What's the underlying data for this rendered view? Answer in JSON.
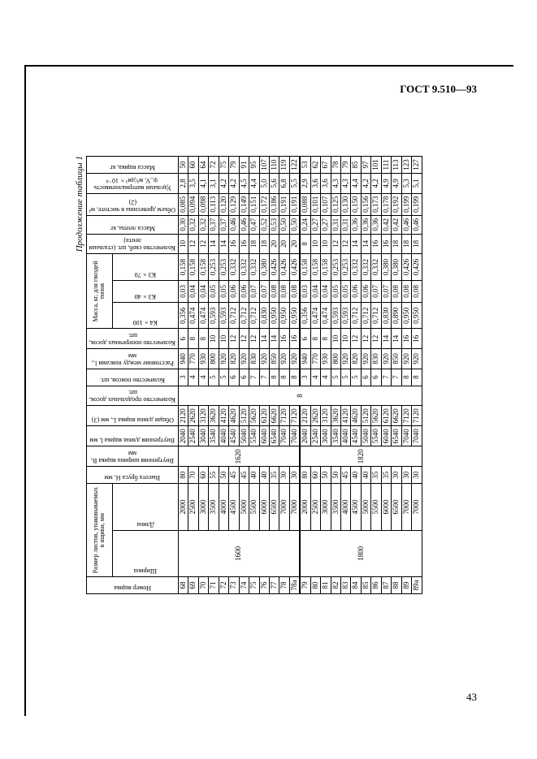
{
  "meta": {
    "gost": "ГОСТ 9.510—93",
    "page": "43",
    "continuation": "Продолжение таблицы 1"
  },
  "headers": {
    "no": "Номер ящика",
    "size_group": "Размер листов, упаковываемых в ящики, мм",
    "w": "Ширина",
    "l": "Длина",
    "H": "Высота бруса H, мм",
    "B": "Внутренняя ширина ящика B, мм",
    "lin": "Внутренняя длина ящика l, мм",
    "Lout": "Общая длина ящика L, мм (3)",
    "pd": "Количество продольных досок, шт.",
    "pc": "Количество поясов, шт.",
    "ld": "Расстояние между поясами l₁, мм",
    "pr": "Количество поперечных досок, шт.",
    "mass_group": "Масса, кг, для гвоздей типов",
    "m1": "К4×100",
    "m2": "К3×40",
    "m3": "К3×70",
    "sk": "Количество скоб, шт. (стальная лента)",
    "ml": "Масса ленты, кг",
    "vd": "Объем древесины в чистоте, м³ (2)",
    "ud": "Удельная материалоемкость ψ_V, м³/дм³×10⁻⁴",
    "mbox": "Масса ящика, кг"
  },
  "blocks": [
    {
      "w": "1600",
      "B": "1620",
      "pd": "8",
      "rows": [
        {
          "n": "68",
          "l": "2000",
          "H": "80",
          "lin": "2040",
          "L": "2120",
          "pc": "3",
          "ld": "940",
          "pr": "6",
          "m1": "0,356",
          "m2": "0,03",
          "m3": "0,158",
          "sk": "10",
          "ml": "0,30",
          "vd": "0,085",
          "ud": "2,8",
          "mb": "50"
        },
        {
          "n": "69",
          "l": "2500",
          "H": "70",
          "lin": "2540",
          "L": "2620",
          "pc": "4",
          "ld": "770",
          "pr": "8",
          "m1": "0,474",
          "m2": "0,04",
          "m3": "0,158",
          "sk": "12",
          "ml": "0,32",
          "vd": "0,094",
          "ud": "3,5",
          "mb": "60"
        },
        {
          "n": "70",
          "l": "3000",
          "H": "60",
          "lin": "3040",
          "L": "3120",
          "pc": "4",
          "ld": "930",
          "pr": "8",
          "m1": "0,474",
          "m2": "0,04",
          "m3": "0,158",
          "sk": "12",
          "ml": "0,32",
          "vd": "0,098",
          "ud": "4,1",
          "mb": "64"
        },
        {
          "n": "71",
          "l": "3500",
          "H": "55",
          "lin": "3540",
          "L": "3620",
          "pc": "5",
          "ld": "800",
          "pr": "10",
          "m1": "0,593",
          "m2": "0,05",
          "m3": "0,253",
          "sk": "14",
          "ml": "0,37",
          "vd": "0,113",
          "ud": "3,1",
          "mb": "72"
        },
        {
          "n": "72",
          "l": "4000",
          "H": "50",
          "lin": "4040",
          "L": "4120",
          "pc": "5",
          "ld": "920",
          "pr": "10",
          "m1": "0,593",
          "m2": "0,05",
          "m3": "0,253",
          "sk": "14",
          "ml": "0,37",
          "vd": "0,120",
          "ud": "4,2",
          "mb": "75"
        },
        {
          "n": "73",
          "l": "4500",
          "H": "45",
          "lin": "4540",
          "L": "4620",
          "pc": "6",
          "ld": "820",
          "pr": "12",
          "m1": "0,712",
          "m2": "0,06",
          "m3": "0,332",
          "sk": "16",
          "ml": "0,46",
          "vd": "0,129",
          "ud": "4,2",
          "mb": "79"
        },
        {
          "n": "74",
          "l": "5000",
          "H": "45",
          "lin": "5040",
          "L": "5120",
          "pc": "6",
          "ld": "920",
          "pr": "12",
          "m1": "0,712",
          "m2": "0,06",
          "m3": "0,332",
          "sk": "16",
          "ml": "0,46",
          "vd": "0,149",
          "ud": "4,5",
          "mb": "91"
        },
        {
          "n": "75",
          "l": "5500",
          "H": "40",
          "lin": "5540",
          "L": "5620",
          "pc": "7",
          "ld": "830",
          "pr": "12",
          "m1": "0,712",
          "m2": "0,07",
          "m3": "0,332",
          "sk": "18",
          "ml": "0,47",
          "vd": "0,151",
          "ud": "4,4",
          "mb": "95"
        },
        {
          "n": "76",
          "l": "6000",
          "H": "40",
          "lin": "6040",
          "L": "6120",
          "pc": "7",
          "ld": "920",
          "pr": "14",
          "m1": "0,830",
          "m2": "0,07",
          "m3": "0,380",
          "sk": "18",
          "ml": "0,52",
          "vd": "0,172",
          "ud": "5,0",
          "mb": "107"
        },
        {
          "n": "77",
          "l": "6500",
          "H": "35",
          "lin": "6540",
          "L": "6620",
          "pc": "8",
          "ld": "850",
          "pr": "14",
          "m1": "0,950",
          "m2": "0,08",
          "m3": "0,426",
          "sk": "20",
          "ml": "0,53",
          "vd": "0,186",
          "ud": "5,6",
          "mb": "110"
        },
        {
          "n": "78",
          "l": "7000",
          "H": "30",
          "lin": "7040",
          "L": "7120",
          "pc": "8",
          "ld": "920",
          "pr": "16",
          "m1": "0,950",
          "m2": "0,08",
          "m3": "0,426",
          "sk": "20",
          "ml": "0,50",
          "vd": "0,191",
          "ud": "6,8",
          "mb": "119"
        },
        {
          "n": "78a",
          "l": "7000",
          "H": "30",
          "lin": "7040",
          "L": "7120",
          "pc": "8",
          "ld": "920",
          "pr": "16",
          "m1": "0,950",
          "m2": "0,08",
          "m3": "0,426",
          "sk": "20",
          "ml": "0,50",
          "vd": "0,191",
          "ud": "5,5",
          "mb": "122"
        }
      ]
    },
    {
      "w": "1800",
      "B": "1820",
      "pd": "8",
      "rows": [
        {
          "n": "79",
          "l": "2000",
          "H": "80",
          "lin": "2040",
          "L": "2120",
          "pc": "3",
          "ld": "940",
          "pr": "6",
          "m1": "0,356",
          "m2": "0,03",
          "m3": "0,158",
          "sk": "8",
          "ml": "0,24",
          "vd": "0,088",
          "ud": "2,9",
          "mb": "53"
        },
        {
          "n": "80",
          "l": "2500",
          "H": "60",
          "lin": "2540",
          "L": "2620",
          "pc": "4",
          "ld": "770",
          "pr": "8",
          "m1": "0,474",
          "m2": "0,04",
          "m3": "0,158",
          "sk": "10",
          "ml": "0,27",
          "vd": "0,101",
          "ud": "3,6",
          "mb": "62"
        },
        {
          "n": "81",
          "l": "3000",
          "H": "50",
          "lin": "3040",
          "L": "3120",
          "pc": "4",
          "ld": "930",
          "pr": "8",
          "m1": "0,474",
          "m2": "0,04",
          "m3": "0,158",
          "sk": "10",
          "ml": "0,27",
          "vd": "0,107",
          "ud": "3,6",
          "mb": "67"
        },
        {
          "n": "82",
          "l": "3500",
          "H": "50",
          "lin": "3540",
          "L": "3620",
          "pc": "5",
          "ld": "800",
          "pr": "10",
          "m1": "0,593",
          "m2": "0,05",
          "m3": "0,253",
          "sk": "12",
          "ml": "0,31",
          "vd": "0,125",
          "ud": "4,3",
          "mb": "78"
        },
        {
          "n": "83",
          "l": "4000",
          "H": "45",
          "lin": "4040",
          "L": "4120",
          "pc": "5",
          "ld": "920",
          "pr": "10",
          "m1": "0,593",
          "m2": "0,05",
          "m3": "0,253",
          "sk": "12",
          "ml": "0,31",
          "vd": "0,130",
          "ud": "4,3",
          "mb": "79"
        },
        {
          "n": "84",
          "l": "4500",
          "H": "40",
          "lin": "4540",
          "L": "4620",
          "pc": "5",
          "ld": "820",
          "pr": "12",
          "m1": "0,712",
          "m2": "0,06",
          "m3": "0,332",
          "sk": "14",
          "ml": "0,36",
          "vd": "0,150",
          "ud": "4,4",
          "mb": "85"
        },
        {
          "n": "85",
          "l": "5000",
          "H": "40",
          "lin": "5040",
          "L": "5120",
          "pc": "6",
          "ld": "920",
          "pr": "12",
          "m1": "0,712",
          "m2": "0,06",
          "m3": "0,332",
          "sk": "14",
          "ml": "0,36",
          "vd": "0,156",
          "ud": "4,2",
          "mb": "97"
        },
        {
          "n": "86",
          "l": "5500",
          "H": "35",
          "lin": "5540",
          "L": "5620",
          "pc": "6",
          "ld": "830",
          "pr": "12",
          "m1": "0,712",
          "m2": "0,07",
          "m3": "0,332",
          "sk": "16",
          "ml": "0,36",
          "vd": "0,173",
          "ud": "4,2",
          "mb": "101"
        },
        {
          "n": "87",
          "l": "6000",
          "H": "35",
          "lin": "6040",
          "L": "6120",
          "pc": "7",
          "ld": "920",
          "pr": "14",
          "m1": "0,830",
          "m2": "0,07",
          "m3": "0,380",
          "sk": "16",
          "ml": "0,42",
          "vd": "0,178",
          "ud": "4,9",
          "mb": "111"
        },
        {
          "n": "88",
          "l": "6500",
          "H": "30",
          "lin": "6540",
          "L": "6620",
          "pc": "7",
          "ld": "850",
          "pr": "14",
          "m1": "0,890",
          "m2": "0,08",
          "m3": "0,380",
          "sk": "18",
          "ml": "0,42",
          "vd": "0,192",
          "ud": "4,9",
          "mb": "113"
        },
        {
          "n": "89",
          "l": "7000",
          "H": "30",
          "lin": "7040",
          "L": "7120",
          "pc": "8",
          "ld": "920",
          "pr": "16",
          "m1": "0,950",
          "m2": "0,08",
          "m3": "0,426",
          "sk": "18",
          "ml": "0,46",
          "vd": "0,199",
          "ud": "5,3",
          "mb": "123"
        },
        {
          "n": "89a",
          "l": "7000",
          "H": "30",
          "lin": "7040",
          "L": "7120",
          "pc": "8",
          "ld": "920",
          "pr": "16",
          "m1": "0,950",
          "m2": "0,08",
          "m3": "0,426",
          "sk": "18",
          "ml": "0,46",
          "vd": "0,199",
          "ud": "5,1",
          "mb": "127"
        }
      ]
    }
  ]
}
